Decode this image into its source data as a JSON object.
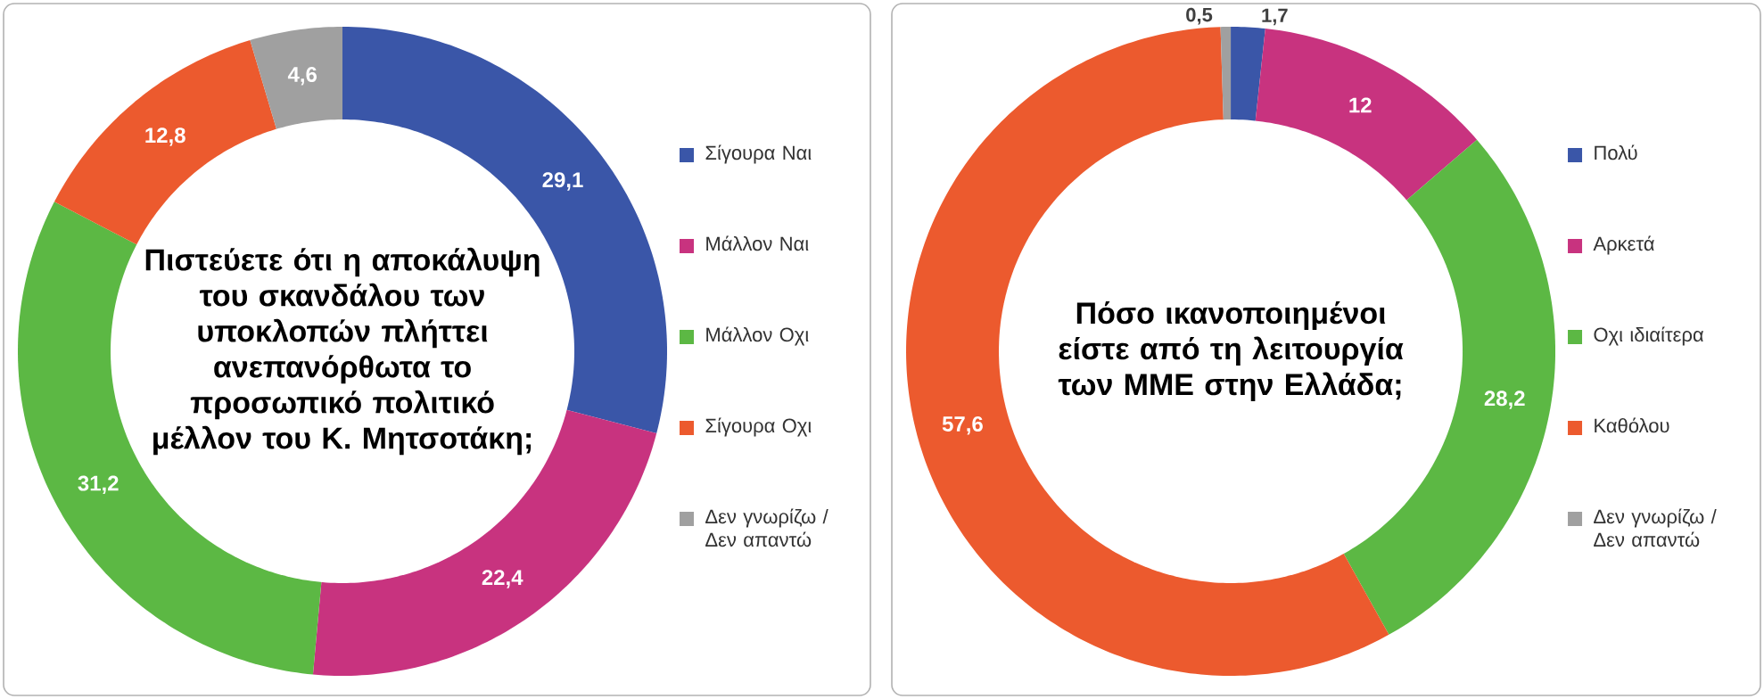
{
  "chart_data": [
    {
      "type": "donut",
      "title": "Πιστεύετε ότι η αποκάλυψη του σκανδάλου των υποκλοπών πλήττει ανεπανόρθωτα το προσωπικό πολιτικό μέλλον του Κ. Μητσοτάκη;",
      "categories": [
        "Σίγουρα Ναι",
        "Μάλλον Ναι",
        "Μάλλον Οχι",
        "Σίγουρα Οχι",
        "Δεν γνωρίζω / Δεν απαντώ"
      ],
      "values": [
        29.1,
        22.4,
        31.2,
        12.8,
        4.6
      ],
      "value_labels": [
        "29,1",
        "22,4",
        "31,2",
        "12,8",
        "4,6"
      ],
      "colors": [
        "#3a56a8",
        "#c8337f",
        "#5cb844",
        "#ec5a2e",
        "#a0a0a0"
      ],
      "legend": "right"
    },
    {
      "type": "donut",
      "title": "Πόσο ικανοποιημένοι είστε από τη λειτουργία των ΜΜΕ στην Ελλάδα;",
      "categories": [
        "Πολύ",
        "Αρκετά",
        "Οχι ιδιαίτερα",
        "Καθόλου",
        "Δεν γνωρίζω / Δεν απαντώ"
      ],
      "values": [
        1.7,
        12,
        28.2,
        57.6,
        0.5
      ],
      "value_labels": [
        "1,7",
        "12",
        "28,2",
        "57,6",
        "0,5"
      ],
      "colors": [
        "#3a56a8",
        "#c8337f",
        "#5cb844",
        "#ec5a2e",
        "#a0a0a0"
      ],
      "legend": "right"
    }
  ]
}
